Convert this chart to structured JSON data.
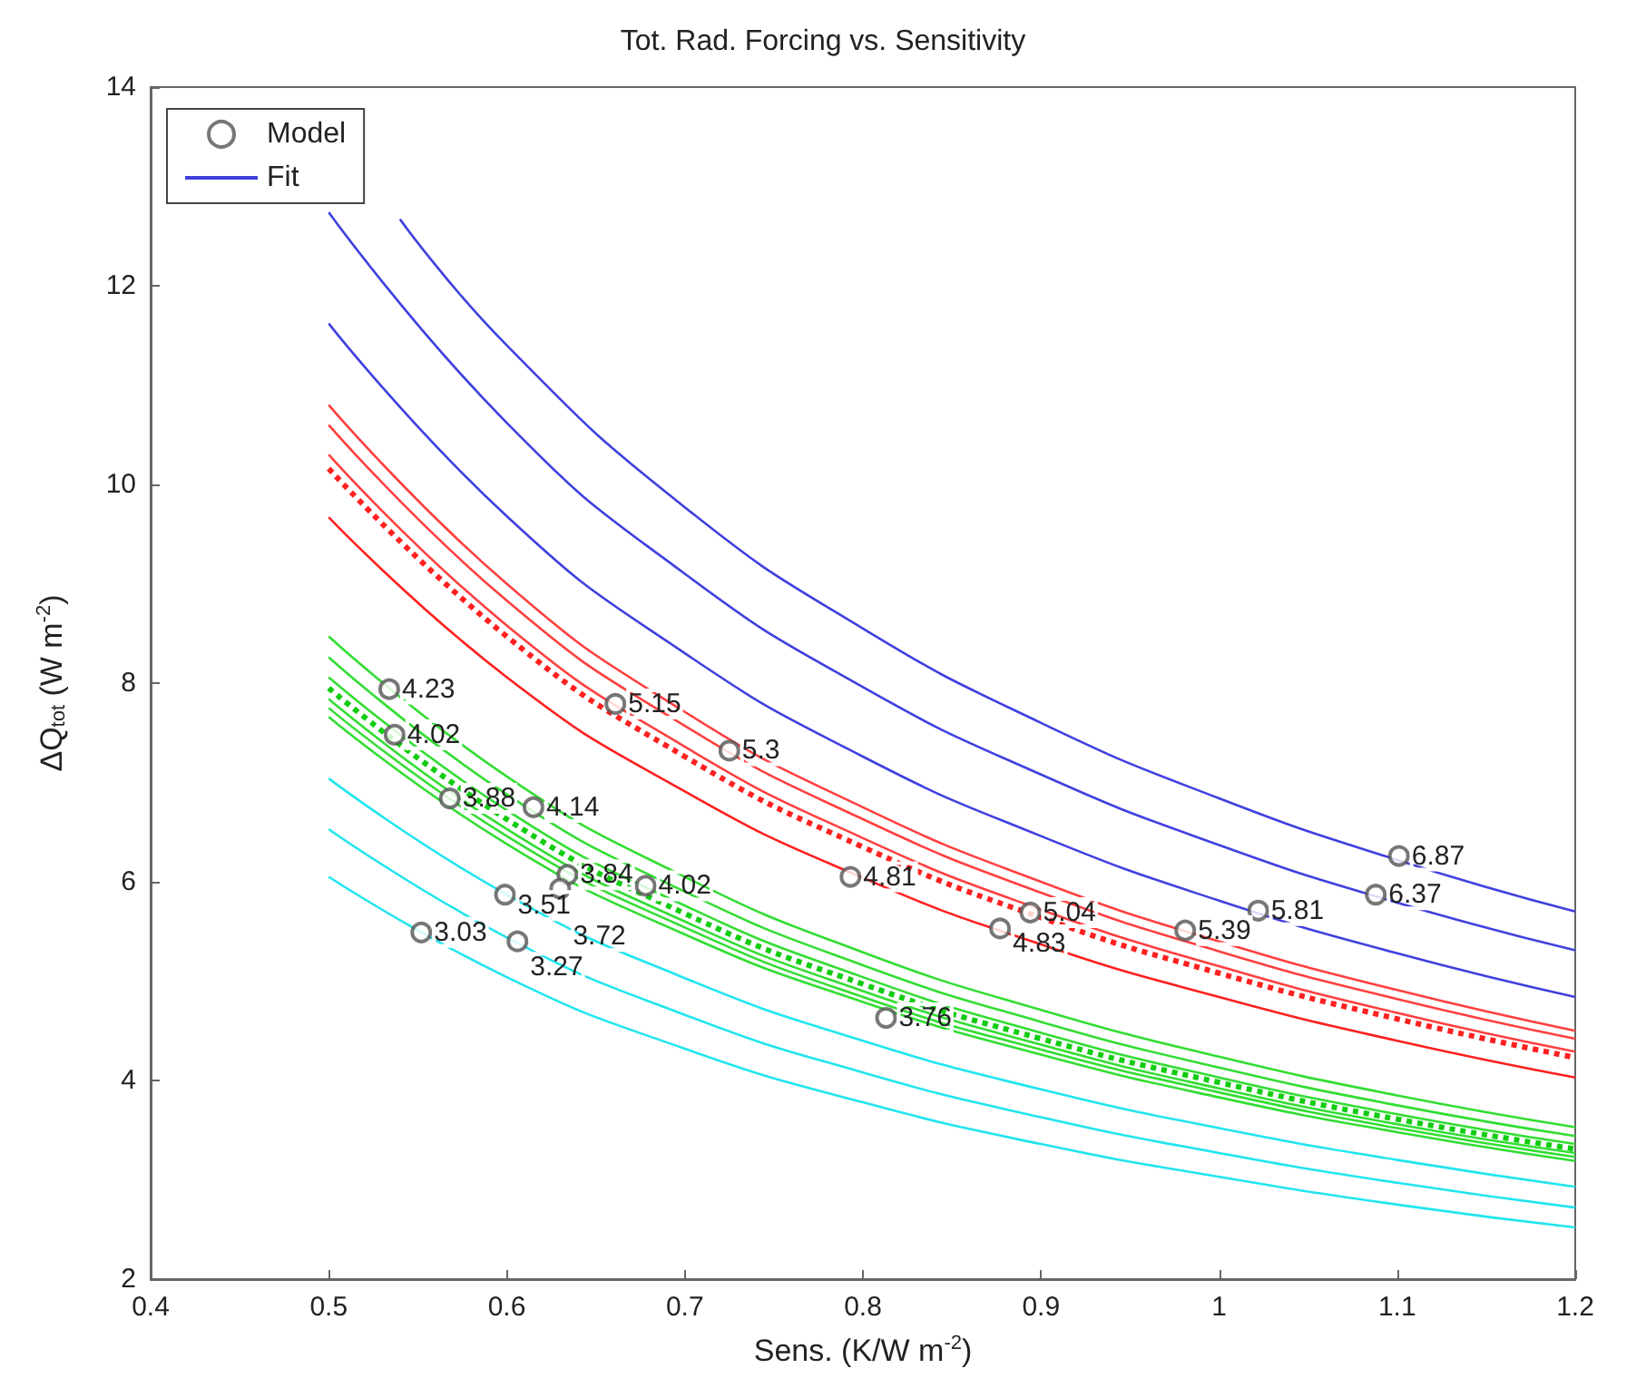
{
  "chart_data": {
    "type": "line",
    "title": "Tot. Rad. Forcing vs. Sensitivity",
    "xlabel": "Sens. (K/W m$^{-2}$)",
    "ylabel": "ΔQ$_{tot}$ (W m$^{-2}$)",
    "x": [
      0.5,
      0.6,
      0.7,
      0.8,
      0.9,
      1.0,
      1.1,
      1.2
    ],
    "xlim": [
      0.4,
      1.2
    ],
    "xticks": [
      0.4,
      0.5,
      0.6,
      0.7,
      0.8,
      0.9,
      1,
      1.1,
      1.2
    ],
    "ylim": [
      2,
      14
    ],
    "yticks": [
      2,
      4,
      6,
      8,
      10,
      12,
      14
    ],
    "grid": false,
    "legend": "top left",
    "marker": "none",
    "line_style": "solid",
    "annotations": [
      {
        "text": "4.23",
        "x": 0.534,
        "y": 7.94
      },
      {
        "text": "4.02",
        "x": 0.537,
        "y": 7.48
      },
      {
        "text": "3.88",
        "x": 0.568,
        "y": 6.84
      },
      {
        "text": "4.14",
        "x": 0.615,
        "y": 6.75
      },
      {
        "text": "3.84",
        "x": 0.634,
        "y": 6.07
      },
      {
        "text": "3.51",
        "x": 0.599,
        "y": 5.87
      },
      {
        "text": "3.72",
        "x": 0.63,
        "y": 5.93
      },
      {
        "text": "4.02",
        "x": 0.678,
        "y": 5.96
      },
      {
        "text": "3.03",
        "x": 0.552,
        "y": 5.49
      },
      {
        "text": "3.27",
        "x": 0.606,
        "y": 5.4
      },
      {
        "text": "5.15",
        "x": 0.661,
        "y": 7.79
      },
      {
        "text": "5.3",
        "x": 0.725,
        "y": 7.32
      },
      {
        "text": "4.81",
        "x": 0.793,
        "y": 6.05
      },
      {
        "text": "5.04",
        "x": 0.894,
        "y": 5.69
      },
      {
        "text": "4.83",
        "x": 0.877,
        "y": 5.53
      },
      {
        "text": "3.76",
        "x": 0.813,
        "y": 4.63
      },
      {
        "text": "6.87",
        "x": 1.101,
        "y": 6.26
      },
      {
        "text": "6.37",
        "x": 1.088,
        "y": 5.87
      },
      {
        "text": "5.81",
        "x": 1.022,
        "y": 5.71
      },
      {
        "text": "5.39",
        "x": 0.981,
        "y": 5.51
      }
    ],
    "series": [
      {
        "name": "Model",
        "type": "scatter",
        "marker": "circle",
        "color": "#555555",
        "x": [
          0.534,
          0.537,
          0.568,
          0.615,
          0.634,
          0.599,
          0.63,
          0.678,
          0.552,
          0.606,
          0.661,
          0.725,
          0.793,
          0.894,
          0.877,
          0.813,
          1.101,
          1.088,
          1.022,
          0.981
        ],
        "values": [
          7.94,
          7.48,
          6.84,
          6.75,
          6.07,
          5.87,
          5.93,
          5.96,
          5.49,
          5.4,
          7.79,
          7.32,
          6.05,
          5.69,
          5.53,
          4.63,
          6.26,
          5.87,
          5.71,
          5.51
        ]
      },
      {
        "name": "Fit",
        "color": "#4040e0",
        "x": [
          0.54,
          0.6,
          0.7,
          0.8,
          0.9,
          1.0,
          1.1,
          1.2
        ],
        "values": [
          12.67,
          11.4,
          9.77,
          8.55,
          7.6,
          6.84,
          6.22,
          5.7
        ]
      },
      {
        "color": "#4040e0",
        "values": [
          12.74,
          10.62,
          9.1,
          7.96,
          7.08,
          6.37,
          5.79,
          5.31
        ]
      },
      {
        "color": "#4040e0",
        "values": [
          11.62,
          9.68,
          8.3,
          7.26,
          6.46,
          5.81,
          5.28,
          4.84
        ]
      },
      {
        "color": "#ff4040",
        "values": [
          10.8,
          9.0,
          7.71,
          6.75,
          6.0,
          5.4,
          4.91,
          4.5
        ]
      },
      {
        "color": "#ff4040",
        "values": [
          10.6,
          8.83,
          7.57,
          6.63,
          5.89,
          5.3,
          4.82,
          4.42
        ]
      },
      {
        "color": "#ff4040",
        "values": [
          10.3,
          8.58,
          7.36,
          6.44,
          5.72,
          5.15,
          4.68,
          4.29
        ]
      },
      {
        "color": "#ff2020",
        "line_style": "dotted",
        "values": [
          10.16,
          8.47,
          7.26,
          6.35,
          5.64,
          5.08,
          4.62,
          4.23
        ]
      },
      {
        "color": "#ff2020",
        "values": [
          9.67,
          8.06,
          6.91,
          6.04,
          5.37,
          4.84,
          4.4,
          4.03
        ]
      },
      {
        "color": "#33dd33",
        "values": [
          8.47,
          7.06,
          6.05,
          5.29,
          4.71,
          4.24,
          3.85,
          3.53
        ]
      },
      {
        "color": "#33dd33",
        "values": [
          8.26,
          6.88,
          5.9,
          5.16,
          4.59,
          4.13,
          3.75,
          3.44
        ]
      },
      {
        "color": "#33dd33",
        "values": [
          8.06,
          6.72,
          5.76,
          5.04,
          4.48,
          4.03,
          3.66,
          3.36
        ]
      },
      {
        "color": "#11cc11",
        "line_style": "dotted",
        "values": [
          7.95,
          6.63,
          5.68,
          4.97,
          4.42,
          3.98,
          3.61,
          3.31
        ]
      },
      {
        "color": "#33dd33",
        "values": [
          7.84,
          6.53,
          5.6,
          4.9,
          4.36,
          3.92,
          3.56,
          3.27
        ]
      },
      {
        "color": "#33dd33",
        "values": [
          7.75,
          6.46,
          5.54,
          4.84,
          4.31,
          3.88,
          3.52,
          3.23
        ]
      },
      {
        "color": "#33dd33",
        "values": [
          7.66,
          6.38,
          5.47,
          4.79,
          4.26,
          3.83,
          3.48,
          3.19
        ]
      },
      {
        "color": "#22e5ee",
        "values": [
          7.04,
          5.87,
          5.03,
          4.4,
          3.91,
          3.52,
          3.2,
          2.93
        ]
      },
      {
        "color": "#22e5ee",
        "values": [
          6.53,
          5.44,
          4.66,
          4.08,
          3.63,
          3.27,
          2.97,
          2.72
        ]
      },
      {
        "color": "#22e5ee",
        "values": [
          6.05,
          5.04,
          4.32,
          3.78,
          3.36,
          3.03,
          2.75,
          2.52
        ]
      }
    ]
  }
}
